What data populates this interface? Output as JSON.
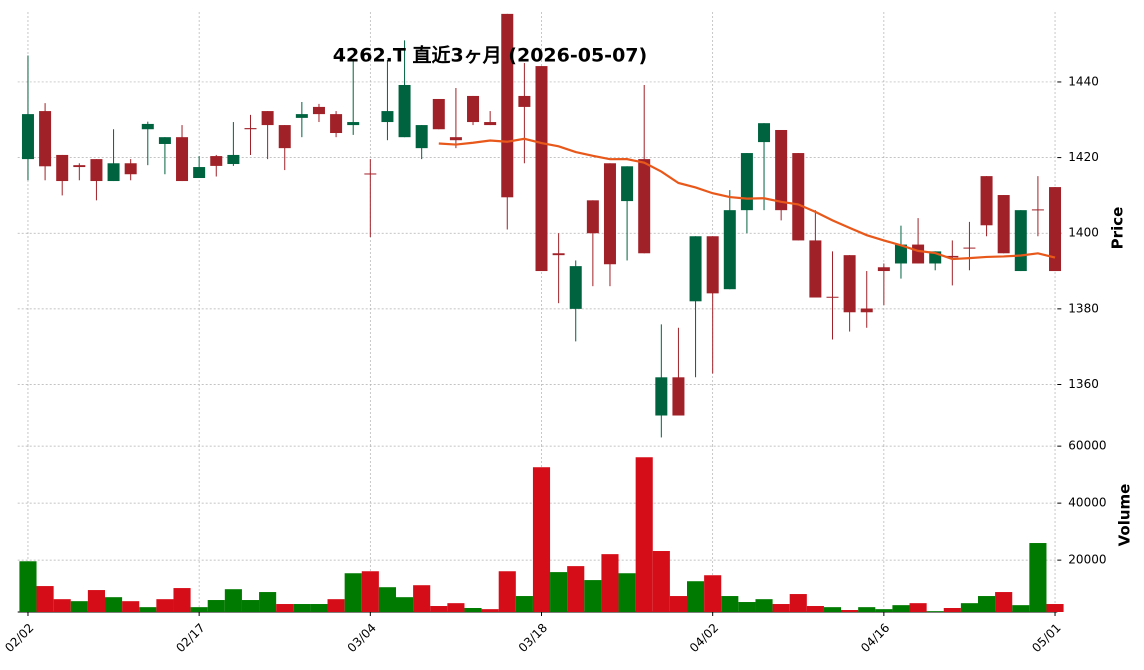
{
  "chart_data": {
    "type": "candlestick",
    "title": "4262.T  直近3ヶ月 (2026-05-07)",
    "ylabel": "Price",
    "volume_label": "Volume",
    "xlim": [
      -0.6,
      60.6
    ],
    "xticks": [
      {
        "value": 0,
        "label": "02/02"
      },
      {
        "value": 10,
        "label": "02/17"
      },
      {
        "value": 20,
        "label": "03/04"
      },
      {
        "value": 30,
        "label": "03/18"
      },
      {
        "value": 40,
        "label": "04/02"
      },
      {
        "value": 50,
        "label": "04/16"
      },
      {
        "value": 60,
        "label": "05/01"
      }
    ],
    "ylim": [
      1344,
      1458.5
    ],
    "yticks": [
      1360,
      1380,
      1400,
      1420,
      1440
    ],
    "volume_ylim": [
      1800,
      60400
    ],
    "volume_yticks": [
      20000,
      40000,
      60000
    ],
    "grid": true,
    "moving_average": 25,
    "up_color": "#006340",
    "down_color": "#a02128",
    "volume_up_color": "#007a00",
    "volume_down_color": "#d50d18",
    "ma_color": "#e8581a",
    "open": [
      1419.6,
      1432.3,
      1420.7,
      1418,
      1419.6,
      1413.8,
      1418.5,
      1427.5,
      1423.6,
      1425.4,
      1414.6,
      1420.4,
      1418.3,
      1427.8,
      1432.3,
      1428.6,
      1430.5,
      1433.4,
      1431.5,
      1428.6,
      1415.8,
      1429.4,
      1425.4,
      1422.5,
      1435.5,
      1425.4,
      1436.3,
      1429.4,
      1458,
      1436.3,
      1444.2,
      1394.7,
      1380,
      1408.7,
      1418.5,
      1408.5,
      1419.6,
      1351.8,
      1361.9,
      1382,
      1399.2,
      1385.2,
      1406.1,
      1424.1,
      1427.3,
      1421.2,
      1398.1,
      1383.2,
      1394.2,
      1380.1,
      1391,
      1392,
      1397,
      1392,
      1394,
      1396.2,
      1415.1,
      1410.1,
      1390,
      1406.3,
      1412.2
    ],
    "high": [
      1447,
      1434.4,
      1420.7,
      1418.5,
      1419.6,
      1427.5,
      1419.6,
      1429.5,
      1425.4,
      1428.6,
      1420.4,
      1420.7,
      1429.4,
      1431.3,
      1432.3,
      1428.6,
      1434.7,
      1434.2,
      1432.3,
      1446,
      1419.6,
      1445.8,
      1451,
      1428.6,
      1435.5,
      1438.4,
      1436.3,
      1432.3,
      1458,
      1445,
      1444.2,
      1400,
      1392.8,
      1408.7,
      1418.5,
      1417.7,
      1439.2,
      1375.9,
      1375,
      1399.2,
      1399.2,
      1411.4,
      1421.2,
      1429.1,
      1427.3,
      1421.2,
      1406.1,
      1395.2,
      1394.2,
      1390,
      1392,
      1402,
      1404,
      1395.2,
      1398.1,
      1403,
      1415.1,
      1410.1,
      1406.1,
      1415.1,
      1412.2
    ],
    "low": [
      1414,
      1414,
      1410,
      1414,
      1408.7,
      1413.8,
      1414,
      1418,
      1415.6,
      1413.8,
      1414.6,
      1415,
      1417.8,
      1420.7,
      1419.6,
      1416.7,
      1425.4,
      1429.4,
      1425.4,
      1426,
      1399,
      1424.6,
      1425.4,
      1419.6,
      1427.5,
      1422.5,
      1428.6,
      1428.6,
      1401,
      1418.5,
      1390,
      1381.5,
      1371.4,
      1386,
      1386,
      1392.8,
      1394.7,
      1346,
      1351.8,
      1361.9,
      1362.9,
      1385.2,
      1400,
      1406.1,
      1403.4,
      1398.1,
      1383,
      1371.9,
      1374,
      1375,
      1381,
      1388,
      1392,
      1390.2,
      1386.2,
      1390.2,
      1399.2,
      1394.7,
      1390,
      1399.2,
      1390
    ],
    "close": [
      1431.5,
      1417.7,
      1413.8,
      1417.5,
      1413.8,
      1418.5,
      1415.6,
      1428.9,
      1425.4,
      1413.8,
      1417.5,
      1417.8,
      1420.7,
      1427.5,
      1428.6,
      1422.5,
      1431.5,
      1431.5,
      1426.5,
      1429.4,
      1415.6,
      1432.3,
      1439.2,
      1428.6,
      1427.5,
      1424.6,
      1429.4,
      1428.6,
      1409.5,
      1433.4,
      1390,
      1394.2,
      1391.3,
      1400,
      1391.8,
      1417.7,
      1394.7,
      1361.9,
      1351.8,
      1399.2,
      1384.1,
      1406.1,
      1421.2,
      1429.1,
      1406.1,
      1398.1,
      1383,
      1383,
      1379.1,
      1379.1,
      1390,
      1397,
      1392,
      1395.2,
      1393.6,
      1396,
      1402.1,
      1394.7,
      1406.1,
      1406.1,
      1390
    ],
    "volume": [
      19600,
      10900,
      6300,
      5600,
      9500,
      7000,
      5600,
      3500,
      6300,
      10200,
      3500,
      6000,
      9800,
      6000,
      8800,
      4600,
      4600,
      4600,
      6300,
      15400,
      16100,
      10500,
      7000,
      11200,
      3900,
      4900,
      3200,
      2800,
      16100,
      7400,
      52600,
      15800,
      17900,
      13000,
      22100,
      15400,
      56100,
      23200,
      7400,
      12600,
      14700,
      7400,
      5300,
      6300,
      4600,
      8100,
      3900,
      3500,
      2500,
      3500,
      2800,
      4200,
      4900,
      2100,
      3200,
      4900,
      7400,
      8800,
      4200,
      26000,
      4600
    ]
  }
}
